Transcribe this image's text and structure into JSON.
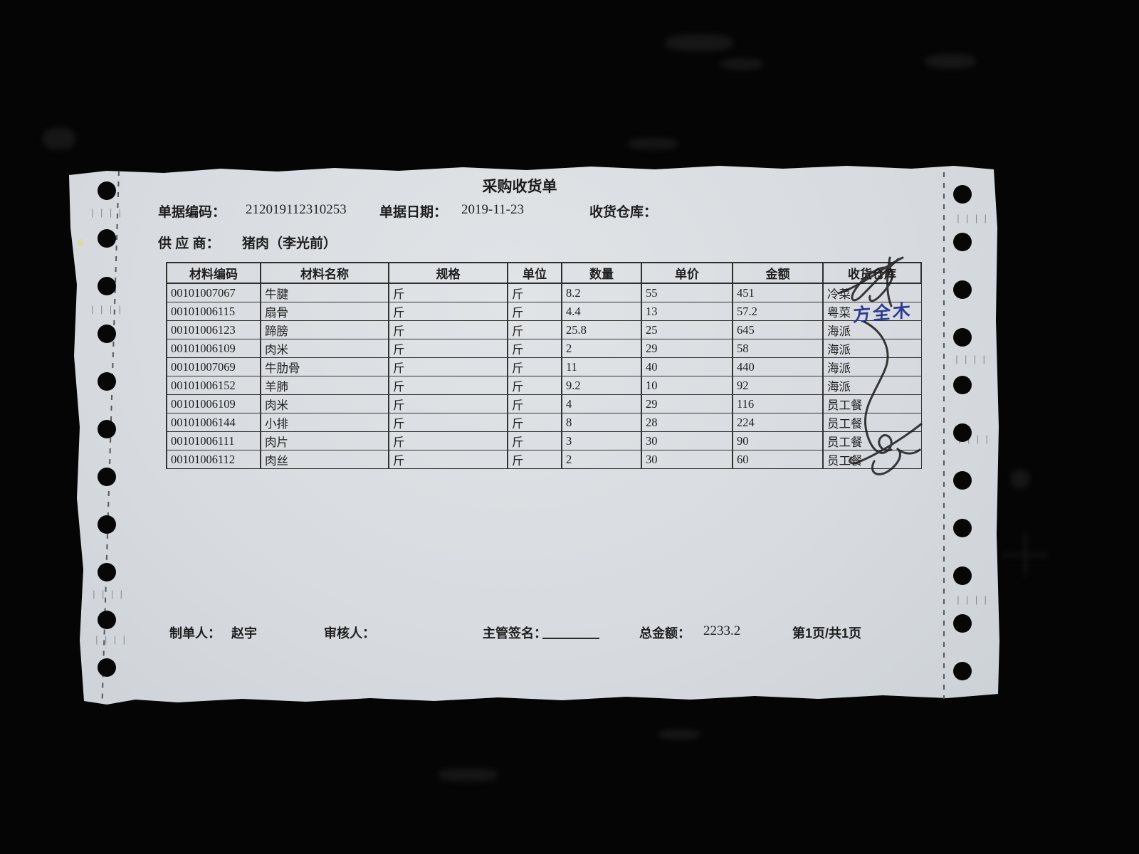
{
  "document": {
    "title": "采购收货单",
    "header": {
      "doc_code_label": "单据编码：",
      "doc_code": "212019112310253",
      "doc_date_label": "单据日期：",
      "doc_date": "2019-11-23",
      "warehouse_label": "收货仓库：",
      "supplier_label": "供 应 商：",
      "supplier": "猪肉（李光前）"
    },
    "table": {
      "columns": [
        "材料编码",
        "材料名称",
        "规格",
        "单位",
        "数量",
        "单价",
        "金额",
        "收货仓库"
      ],
      "rows": [
        [
          "00101007067",
          "牛腱",
          "斤",
          "斤",
          "8.2",
          "55",
          "451",
          "冷菜"
        ],
        [
          "00101006115",
          "扇骨",
          "斤",
          "斤",
          "4.4",
          "13",
          "57.2",
          "粤菜"
        ],
        [
          "00101006123",
          "蹄膀",
          "斤",
          "斤",
          "25.8",
          "25",
          "645",
          "海派"
        ],
        [
          "00101006109",
          "肉米",
          "斤",
          "斤",
          "2",
          "29",
          "58",
          "海派"
        ],
        [
          "00101007069",
          "牛肋骨",
          "斤",
          "斤",
          "11",
          "40",
          "440",
          "海派"
        ],
        [
          "00101006152",
          "羊肺",
          "斤",
          "斤",
          "9.2",
          "10",
          "92",
          "海派"
        ],
        [
          "00101006109",
          "肉米",
          "斤",
          "斤",
          "4",
          "29",
          "116",
          "员工餐"
        ],
        [
          "00101006144",
          "小排",
          "斤",
          "斤",
          "8",
          "28",
          "224",
          "员工餐"
        ],
        [
          "00101006111",
          "肉片",
          "斤",
          "斤",
          "3",
          "30",
          "90",
          "员工餐"
        ],
        [
          "00101006112",
          "肉丝",
          "斤",
          "斤",
          "2",
          "30",
          "60",
          "员工餐"
        ]
      ]
    },
    "annotations": {
      "blue_note": "方全木"
    },
    "footer": {
      "preparer_label": "制单人：",
      "preparer": "赵宇",
      "reviewer_label": "审核人：",
      "signature_label": "主管签名：",
      "total_label": "总金额：",
      "total": "2233.2",
      "page_info": "第1页/共1页"
    }
  },
  "colors": {
    "paper": "#d7dbdf",
    "ink_print": "#1e1e1e",
    "ink_pen_black": "#1a1a1a",
    "ink_pen_blue": "#2c3c94",
    "background": "#050505"
  }
}
